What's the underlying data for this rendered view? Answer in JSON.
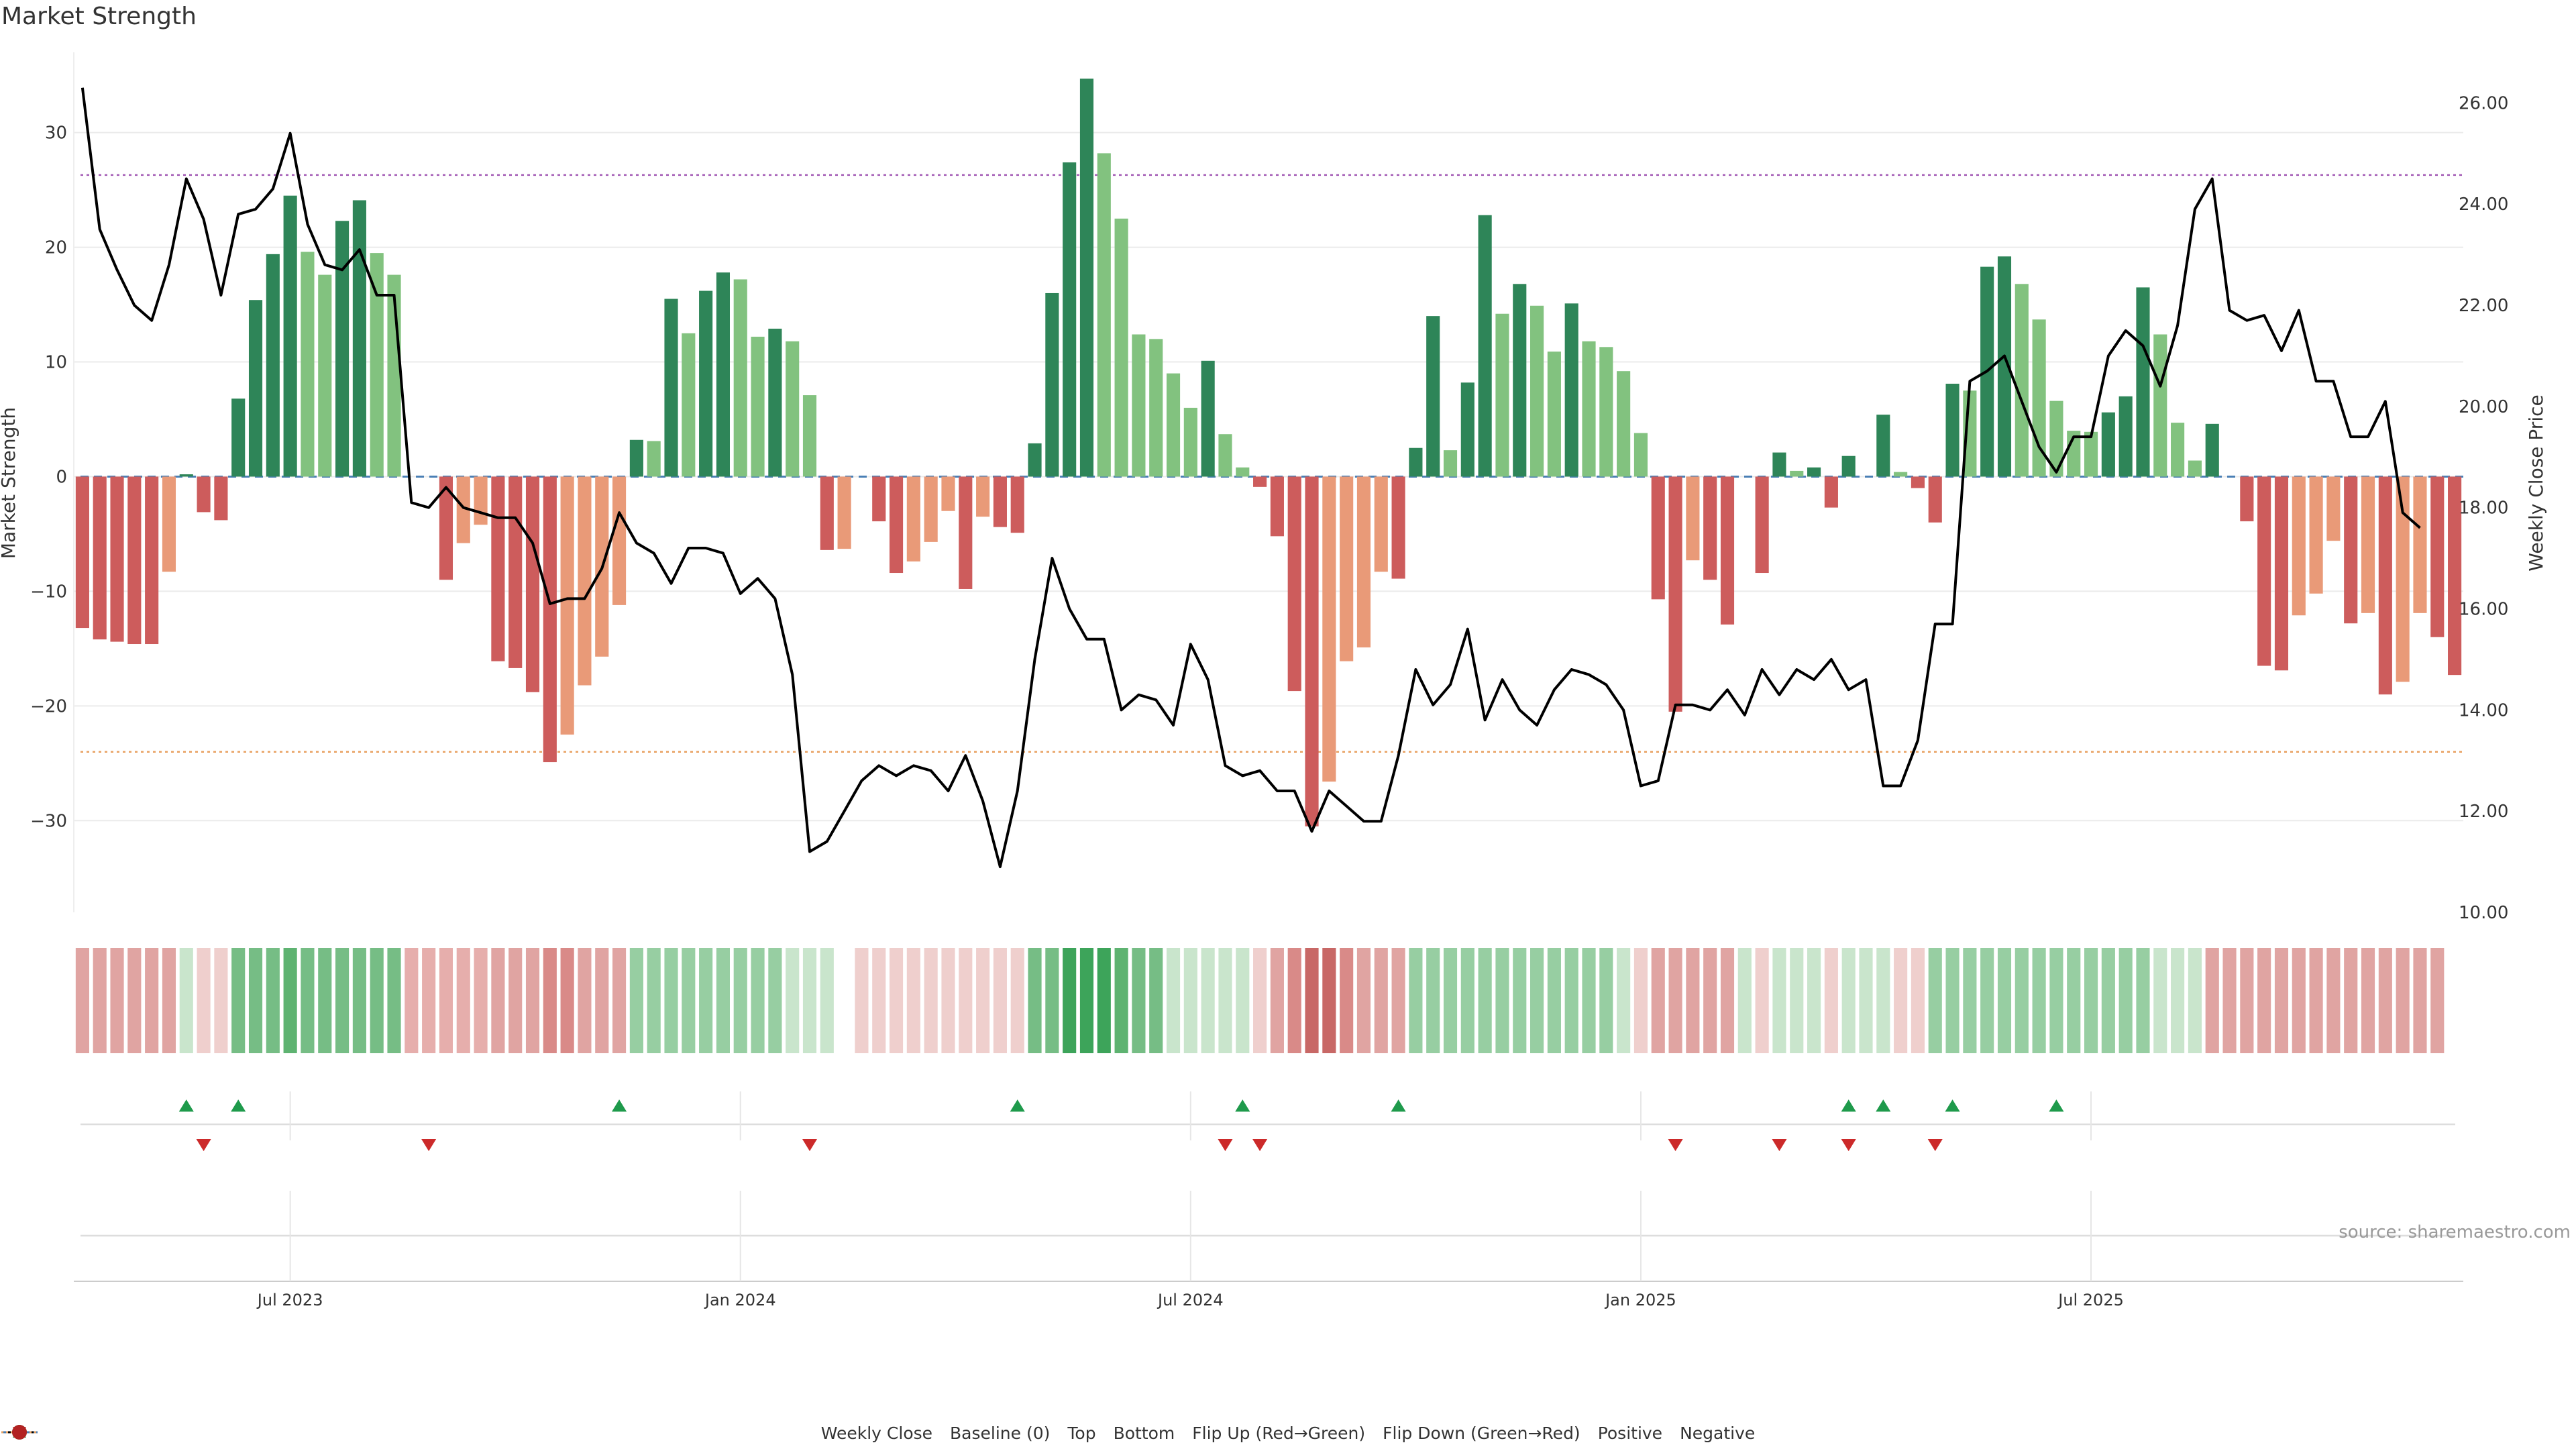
{
  "chart_data": {
    "type": "bar",
    "title": "Market Strength",
    "ylabel": "Market Strength",
    "y2label": "Weekly Close Price",
    "ylim": [
      -38,
      37
    ],
    "y2lim": [
      10,
      27
    ],
    "y_ticks": [
      30,
      20,
      10,
      0,
      -10,
      -20,
      -30
    ],
    "y_tick_labels": [
      "30",
      "20",
      "10",
      "0",
      "−10",
      "−20",
      "−30"
    ],
    "y2_ticks": [
      26,
      24,
      22,
      20,
      18,
      16,
      14,
      12,
      10
    ],
    "y2_tick_labels": [
      "26.00",
      "24.00",
      "22.00",
      "20.00",
      "18.00",
      "16.00",
      "14.00",
      "12.00",
      "10.00"
    ],
    "x_tick_weeks": [
      12,
      38,
      64,
      90,
      116
    ],
    "x_tick_labels": [
      "Jul 2023",
      "Jan 2024",
      "Jul 2024",
      "Jan 2025",
      "Jul 2025"
    ],
    "reference_lines": {
      "baseline": 0,
      "top": 26.3,
      "bottom": -24
    },
    "grid": true,
    "legend_position": "bottom-center",
    "strength": [
      -13.2,
      -14.2,
      -14.4,
      -14.6,
      -14.6,
      -8.3,
      0.2,
      -3.1,
      -3.8,
      6.8,
      15.4,
      19.4,
      24.5,
      19.6,
      17.6,
      22.3,
      24.1,
      19.5,
      17.6,
      0,
      0,
      -9,
      -5.8,
      -4.2,
      -16.1,
      -16.7,
      -18.8,
      -24.9,
      -22.5,
      -18.2,
      -15.7,
      -11.2,
      3.2,
      3.1,
      15.5,
      12.5,
      16.2,
      17.8,
      17.2,
      12.2,
      12.9,
      11.8,
      7.1,
      -6.4,
      -6.3,
      0,
      -3.9,
      -8.4,
      -7.4,
      -5.7,
      -3.0,
      -9.8,
      -3.5,
      -4.4,
      -4.9,
      2.9,
      16.0,
      27.4,
      34.7,
      28.2,
      22.5,
      12.4,
      12.0,
      9.0,
      6.0,
      10.1,
      3.7,
      0.8,
      -0.9,
      -5.2,
      -18.7,
      -30.5,
      -26.6,
      -16.1,
      -14.9,
      -8.3,
      -8.9,
      2.5,
      14.0,
      2.3,
      8.2,
      22.8,
      14.2,
      16.8,
      14.9,
      10.9,
      15.1,
      11.8,
      11.3,
      9.2,
      3.8,
      -10.7,
      -20.5,
      -7.3,
      -9.0,
      -12.9,
      0,
      -8.4,
      2.1,
      0.5,
      0.8,
      -2.7,
      1.8,
      0,
      5.4,
      0.4,
      -1.0,
      -4.0,
      8.1,
      7.5,
      18.3,
      19.2,
      16.8,
      13.7,
      6.6,
      4.0,
      3.9,
      5.6,
      7.0,
      16.5,
      12.4,
      4.7,
      1.4,
      4.6,
      0,
      -3.9,
      -16.5,
      -16.9,
      -12.1,
      -10.2,
      -5.6,
      -12.8,
      -11.9,
      -19.0,
      -17.9,
      -11.9,
      -14.0,
      -17.3
    ],
    "close": [
      26.3,
      23.5,
      22.7,
      22.0,
      21.7,
      22.8,
      24.5,
      23.7,
      22.2,
      23.8,
      23.9,
      24.3,
      25.4,
      23.6,
      22.8,
      22.7,
      23.1,
      22.2,
      22.2,
      18.1,
      18.0,
      18.4,
      18.0,
      17.9,
      17.8,
      17.8,
      17.3,
      16.1,
      16.2,
      16.2,
      16.8,
      17.9,
      17.3,
      17.1,
      16.5,
      17.2,
      17.2,
      17.1,
      16.3,
      16.6,
      16.2,
      14.7,
      11.2,
      11.4,
      12.0,
      12.6,
      12.9,
      12.7,
      12.9,
      12.8,
      12.4,
      13.1,
      12.2,
      10.9,
      12.4,
      15.0,
      17.0,
      16.0,
      15.4,
      15.4,
      14.0,
      14.3,
      14.2,
      13.7,
      15.3,
      14.6,
      12.9,
      12.7,
      12.8,
      12.4,
      12.4,
      11.6,
      12.4,
      12.1,
      11.8,
      11.8,
      13.1,
      14.8,
      14.1,
      14.5,
      15.6,
      13.8,
      14.6,
      14.0,
      13.7,
      14.4,
      14.8,
      14.7,
      14.5,
      14.0,
      12.5,
      12.6,
      14.1,
      14.1,
      14.0,
      14.4,
      13.9,
      14.8,
      14.3,
      14.8,
      14.6,
      15.0,
      14.4,
      14.6,
      12.5,
      12.5,
      13.4,
      15.7,
      15.7,
      20.5,
      20.7,
      21.0,
      20.1,
      19.2,
      18.7,
      19.4,
      19.4,
      21.0,
      21.5,
      21.2,
      20.4,
      21.6,
      23.9,
      24.5,
      21.9,
      21.7,
      21.8,
      21.1,
      21.9,
      20.5,
      20.5,
      19.4,
      19.4,
      20.1,
      17.9,
      17.6
    ],
    "heat": [
      -3,
      -3,
      -3,
      -3,
      -3,
      -3,
      1,
      -1,
      -1,
      3,
      3,
      3,
      4,
      3,
      3,
      3,
      3,
      3,
      3,
      -2,
      -2,
      -2,
      -2,
      -2,
      -3,
      -3,
      -3,
      -4,
      -4,
      -3,
      -3,
      -3,
      2,
      2,
      2,
      2,
      2,
      2,
      2,
      2,
      2,
      1,
      1,
      1,
      0,
      -1,
      -1,
      -1,
      -1,
      -1,
      -1,
      -1,
      -1,
      -1,
      -1,
      3,
      3,
      5,
      5,
      5,
      4,
      3,
      3,
      1,
      1,
      1,
      1,
      1,
      -1,
      -3,
      -4,
      -5,
      -5,
      -4,
      -3,
      -3,
      -3,
      2,
      2,
      2,
      2,
      2,
      2,
      2,
      2,
      2,
      2,
      2,
      2,
      1,
      -1,
      -3,
      -3,
      -3,
      -3,
      -3,
      1,
      -1,
      1,
      1,
      1,
      -1,
      1,
      1,
      1,
      -1,
      -1,
      2,
      2,
      2,
      2,
      2,
      2,
      2,
      2,
      2,
      2,
      2,
      2,
      2,
      1,
      1,
      1,
      -3,
      -3,
      -3,
      -3,
      -3,
      -3,
      -3,
      -3,
      -3,
      -3,
      -3,
      -3,
      -3,
      -3
    ],
    "flip_up": [
      6,
      9,
      31,
      54,
      67,
      76,
      102,
      104,
      108,
      114
    ],
    "flip_down": [
      7,
      20,
      42,
      66,
      68,
      92,
      98,
      102,
      107
    ],
    "series": [
      {
        "name": "Weekly Close",
        "type": "line",
        "color": "#000000"
      },
      {
        "name": "Baseline (0)",
        "type": "dashed-line",
        "color": "#4a7fb5"
      },
      {
        "name": "Top",
        "type": "dotted-line",
        "color": "#a259b5"
      },
      {
        "name": "Bottom",
        "type": "dotted-line",
        "color": "#e8a060"
      },
      {
        "name": "Flip Up (Red→Green)",
        "type": "marker",
        "color": "#1e9a4b"
      },
      {
        "name": "Flip Down (Green→Red)",
        "type": "marker",
        "color": "#cc2a2a"
      },
      {
        "name": "Positive",
        "type": "dot",
        "color": "#2e8b2e"
      },
      {
        "name": "Negative",
        "type": "dot",
        "color": "#b22222"
      }
    ],
    "colors": {
      "pos_strong": "#2e8558",
      "pos_light": "#82c27f",
      "neg_strong": "#cd5c5c",
      "neg_light": "#e99a78",
      "grid": "#ebebeb",
      "axis_text": "#333333"
    }
  },
  "source_note": "source: sharemaestro.com"
}
